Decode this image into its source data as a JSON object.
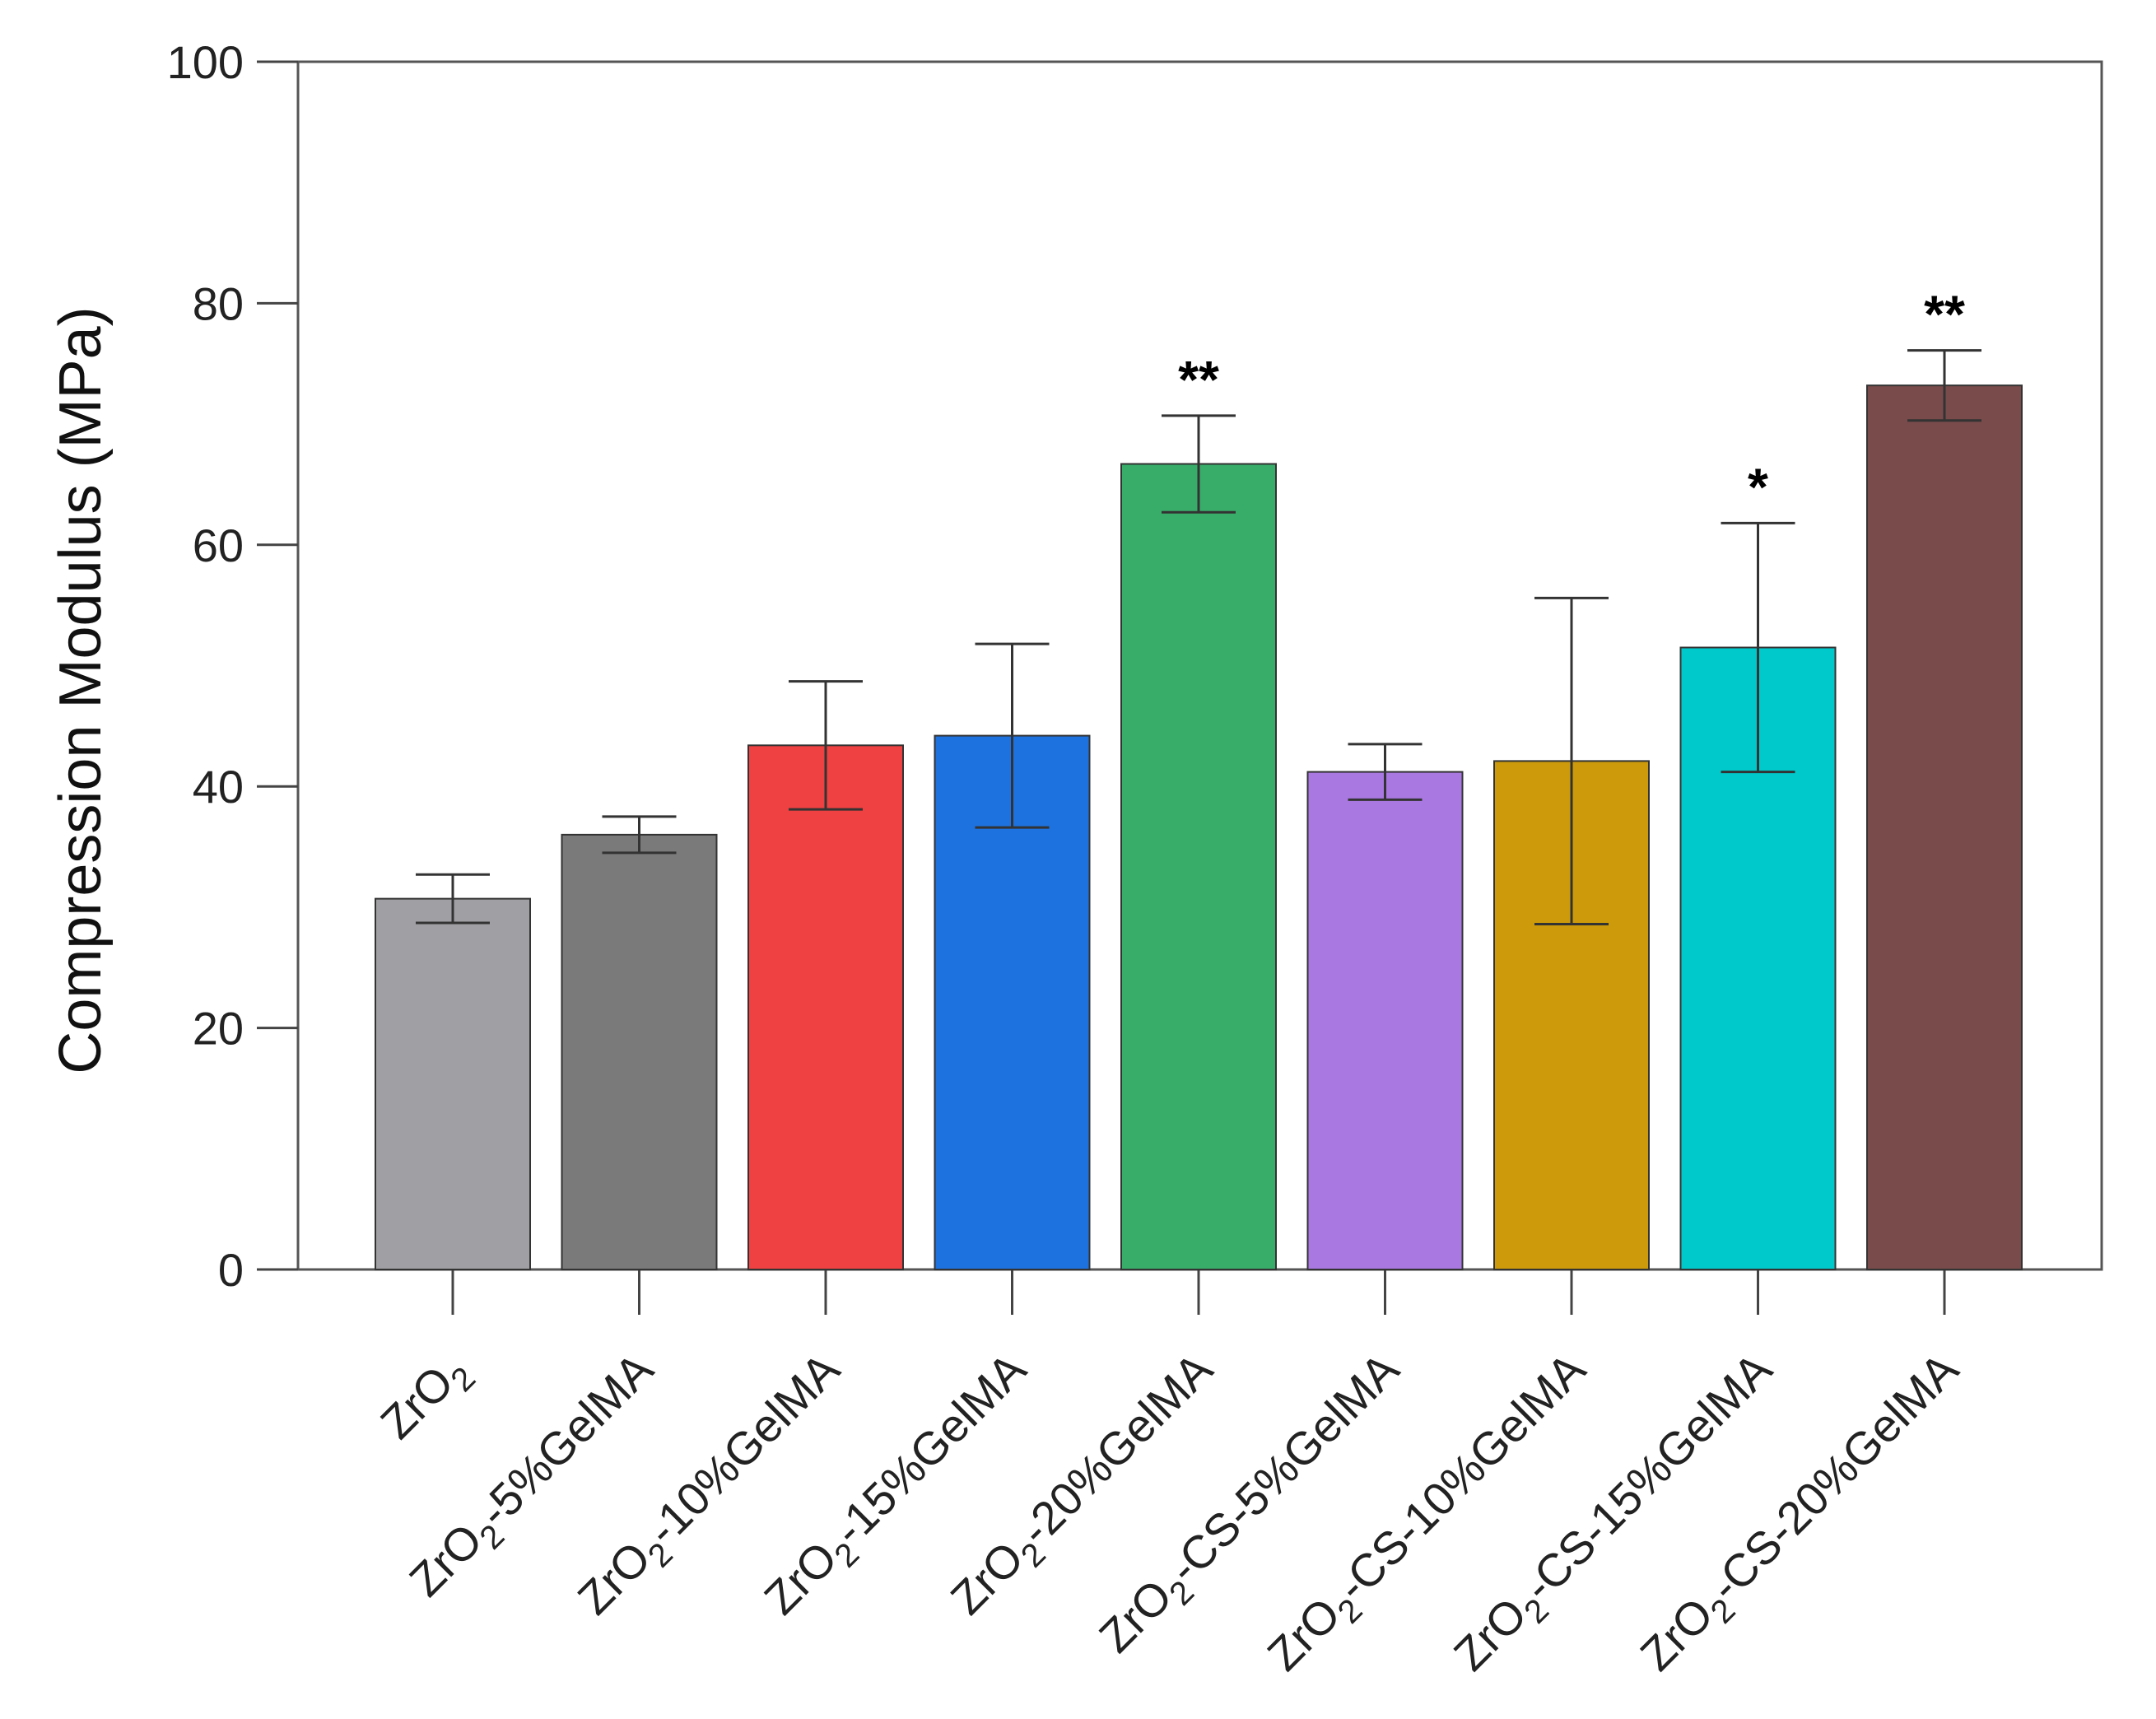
{
  "chart_data": {
    "type": "bar",
    "title": "",
    "xlabel": "",
    "ylabel": "Compression Modulus (MPa)",
    "ylim": [
      0,
      100
    ],
    "yticks": [
      0,
      20,
      40,
      60,
      80,
      100
    ],
    "grid": false,
    "legend": "none",
    "categories": [
      {
        "label": "ZrO2",
        "base": "ZrO",
        "sub": "2",
        "rest": ""
      },
      {
        "label": "ZrO2-5%GelMA",
        "base": "ZrO",
        "sub": "2",
        "rest": "-5%GelMA"
      },
      {
        "label": "ZrO2-10%GelMA",
        "base": "ZrO",
        "sub": "2",
        "rest": "-10%GelMA"
      },
      {
        "label": "ZrO2-15%GelMA",
        "base": "ZrO",
        "sub": "2",
        "rest": "-15%GelMA"
      },
      {
        "label": "ZrO2-20%GelMA",
        "base": "ZrO",
        "sub": "2",
        "rest": "-20%GelMA"
      },
      {
        "label": "ZrO2-CS-5%GelMA",
        "base": "ZrO",
        "sub": "2",
        "rest": "-CS-5%GelMA"
      },
      {
        "label": "ZrO2-CS-10%GelMA",
        "base": "ZrO",
        "sub": "2",
        "rest": "-CS-10%GelMA"
      },
      {
        "label": "ZrO2-CS-15%GelMA",
        "base": "ZrO",
        "sub": "2",
        "rest": "-CS-15%GelMA"
      },
      {
        "label": "ZrO2-CS-20%GelMA",
        "base": "ZrO",
        "sub": "2",
        "rest": "-CS-20%GelMA"
      }
    ],
    "values": [
      30.7,
      36.0,
      43.4,
      44.2,
      66.7,
      41.2,
      42.1,
      51.5,
      73.2
    ],
    "errors": [
      2.0,
      1.5,
      5.3,
      7.6,
      4.0,
      2.3,
      13.5,
      10.3,
      2.9
    ],
    "significance": [
      "",
      "",
      "",
      "",
      "**",
      "",
      "",
      "*",
      "**"
    ],
    "colors": [
      "#a0a0a4",
      "#7a7a7a",
      "#ef4141",
      "#1d72e0",
      "#38ad6a",
      "#a978e0",
      "#cc9a0a",
      "#00c9cb",
      "#7a4b4b"
    ]
  }
}
